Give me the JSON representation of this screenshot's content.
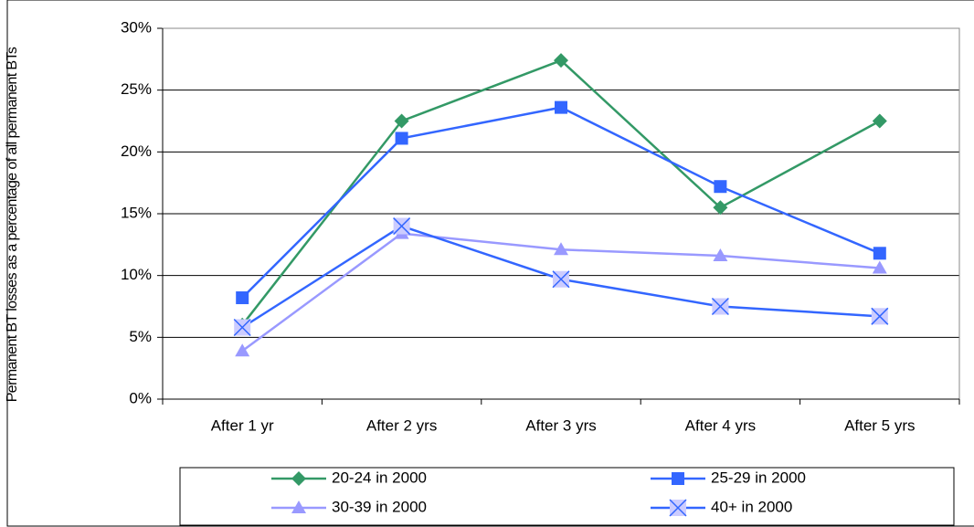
{
  "chart_data": {
    "type": "line",
    "y_label": "Permanent BT losses as a percentage of all permanent BTs",
    "categories": [
      "After 1 yr",
      "After 2 yrs",
      "After 3 yrs",
      "After 4 yrs",
      "After 5 yrs"
    ],
    "series": [
      {
        "name": "20-24 in 2000",
        "color": "#339966",
        "marker": "diamond",
        "values": [
          6.0,
          22.5,
          27.4,
          15.5,
          22.5
        ]
      },
      {
        "name": "25-29 in 2000",
        "color": "#3366ff",
        "marker": "square",
        "values": [
          8.2,
          21.1,
          23.6,
          17.2,
          11.8
        ]
      },
      {
        "name": "30-39 in 2000",
        "color": "#9999ff",
        "marker": "triangle",
        "values": [
          3.9,
          13.4,
          12.1,
          11.6,
          10.6
        ]
      },
      {
        "name": "40+ in 2000",
        "color": "#3366ff",
        "marker": "x",
        "marker_color": "#ccccff",
        "values": [
          5.8,
          14.0,
          9.7,
          7.5,
          6.7
        ]
      }
    ],
    "ylim": [
      0,
      30
    ],
    "yticks": [
      {
        "value": 0,
        "label": "0%"
      },
      {
        "value": 5,
        "label": "5%"
      },
      {
        "value": 10,
        "label": "10%"
      },
      {
        "value": 15,
        "label": "15%"
      },
      {
        "value": 20,
        "label": "20%"
      },
      {
        "value": 25,
        "label": "25%"
      },
      {
        "value": 30,
        "label": "30%"
      }
    ],
    "grid": true
  }
}
